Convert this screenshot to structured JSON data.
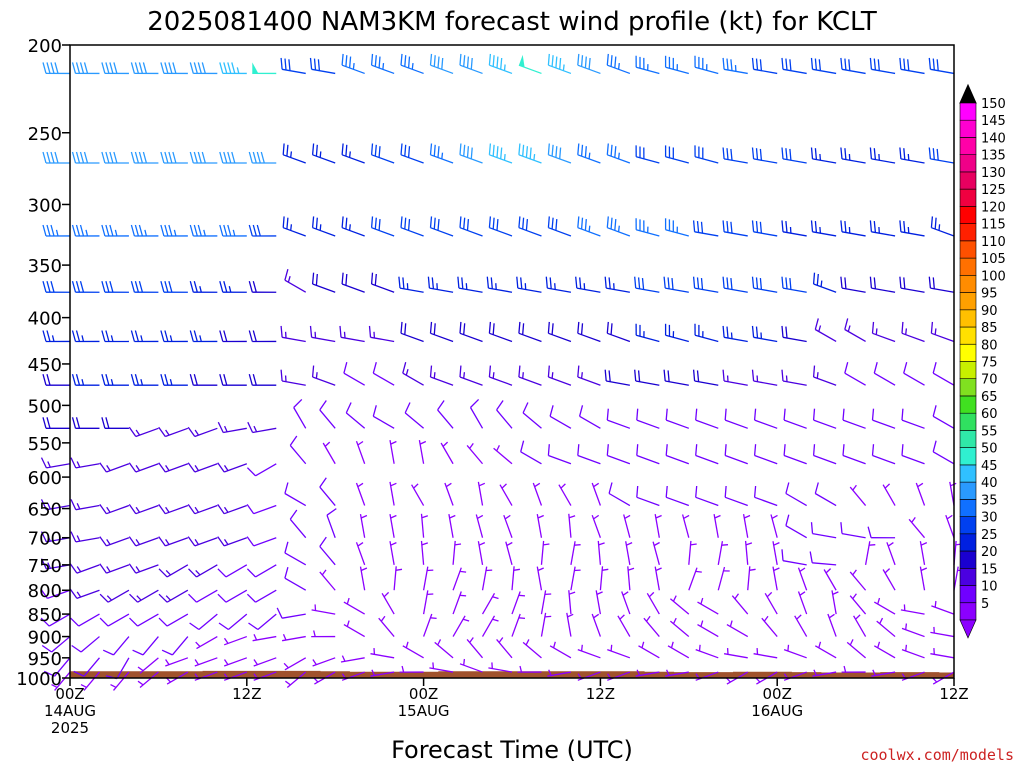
{
  "title": "2025081400 NAM3KM forecast wind profile (kt) for KCLT",
  "xlabel": "Forecast Time (UTC)",
  "credit": "coolwx.com/models",
  "credit_color": "#cc2222",
  "ground_color": "#a0522d",
  "chart_data": {
    "type": "wind-barb-profile",
    "title": "2025081400 NAM3KM forecast wind profile (kt) for KCLT",
    "xlabel": "Forecast Time (UTC)",
    "ylabel": "",
    "y_scale": "log",
    "y_inverted": true,
    "ylim": [
      1000,
      200
    ],
    "y_ticks": [
      200,
      250,
      300,
      350,
      400,
      450,
      500,
      550,
      600,
      650,
      700,
      750,
      800,
      850,
      900,
      950,
      1000
    ],
    "xlim_hours": [
      0,
      60
    ],
    "x_ticks": [
      {
        "hour": 0,
        "lines": [
          "00Z",
          "14AUG",
          "2025"
        ]
      },
      {
        "hour": 12,
        "lines": [
          "12Z"
        ]
      },
      {
        "hour": 24,
        "lines": [
          "00Z",
          "15AUG"
        ]
      },
      {
        "hour": 36,
        "lines": [
          "12Z"
        ]
      },
      {
        "hour": 48,
        "lines": [
          "00Z",
          "16AUG"
        ]
      },
      {
        "hour": 60,
        "lines": [
          "12Z"
        ]
      }
    ],
    "colorbar": {
      "values": [
        5,
        10,
        15,
        20,
        25,
        30,
        35,
        40,
        45,
        50,
        55,
        60,
        65,
        70,
        75,
        80,
        85,
        90,
        95,
        100,
        105,
        110,
        115,
        120,
        125,
        130,
        135,
        140,
        145,
        150
      ],
      "colors": [
        "#8b00ff",
        "#7000ff",
        "#4b00e0",
        "#1a00d0",
        "#0020e0",
        "#0040f0",
        "#1070ff",
        "#2a9aff",
        "#30c0ff",
        "#30f0d0",
        "#30e8a8",
        "#30e060",
        "#40e020",
        "#80e020",
        "#c8f000",
        "#ffff00",
        "#ffe000",
        "#ffc000",
        "#ffa000",
        "#ff8c00",
        "#ff7000",
        "#ff5000",
        "#ff2000",
        "#ff0000",
        "#f00040",
        "#e80060",
        "#f00088",
        "#ff00a8",
        "#ff00d0",
        "#ff00ff"
      ]
    },
    "levels": [
      {
        "p": 215,
        "speed": [
          40,
          40,
          40,
          40,
          40,
          40,
          45,
          50,
          30,
          30,
          35,
          35,
          35,
          40,
          40,
          45,
          50,
          45,
          40,
          35,
          35,
          35,
          35,
          35,
          30,
          30,
          30,
          30,
          30,
          30,
          30
        ],
        "dir": [
          270,
          270,
          270,
          270,
          270,
          270,
          270,
          270,
          280,
          280,
          290,
          290,
          290,
          290,
          290,
          290,
          290,
          290,
          290,
          290,
          285,
          285,
          285,
          280,
          280,
          280,
          280,
          280,
          280,
          280,
          280
        ]
      },
      {
        "p": 270,
        "speed": [
          40,
          40,
          40,
          40,
          40,
          40,
          40,
          40,
          25,
          25,
          25,
          30,
          30,
          35,
          40,
          45,
          45,
          40,
          35,
          35,
          30,
          30,
          30,
          30,
          30,
          30,
          25,
          25,
          25,
          25,
          30
        ],
        "dir": [
          270,
          270,
          270,
          270,
          270,
          270,
          270,
          270,
          290,
          290,
          290,
          290,
          290,
          290,
          290,
          290,
          290,
          290,
          290,
          290,
          285,
          285,
          285,
          280,
          280,
          280,
          280,
          280,
          280,
          280,
          280
        ]
      },
      {
        "p": 325,
        "speed": [
          35,
          35,
          35,
          35,
          35,
          35,
          35,
          30,
          25,
          25,
          25,
          30,
          30,
          30,
          30,
          30,
          30,
          30,
          35,
          35,
          35,
          35,
          30,
          30,
          30,
          25,
          25,
          25,
          25,
          25,
          25
        ],
        "dir": [
          270,
          270,
          270,
          270,
          270,
          270,
          270,
          270,
          290,
          290,
          290,
          290,
          290,
          290,
          290,
          290,
          290,
          290,
          290,
          290,
          285,
          285,
          280,
          280,
          280,
          280,
          280,
          280,
          280,
          280,
          290
        ]
      },
      {
        "p": 375,
        "speed": [
          30,
          30,
          30,
          30,
          30,
          25,
          25,
          20,
          15,
          20,
          20,
          20,
          25,
          25,
          25,
          25,
          25,
          25,
          25,
          25,
          30,
          30,
          30,
          30,
          30,
          30,
          25,
          20,
          20,
          20,
          20
        ],
        "dir": [
          270,
          270,
          270,
          270,
          270,
          270,
          270,
          270,
          300,
          290,
          290,
          290,
          280,
          280,
          280,
          280,
          280,
          280,
          280,
          280,
          280,
          280,
          280,
          280,
          280,
          280,
          290,
          280,
          280,
          280,
          280
        ]
      },
      {
        "p": 425,
        "speed": [
          25,
          25,
          25,
          25,
          25,
          25,
          20,
          20,
          15,
          15,
          15,
          15,
          20,
          20,
          20,
          20,
          20,
          20,
          20,
          20,
          25,
          25,
          25,
          25,
          25,
          20,
          15,
          15,
          15,
          15,
          15
        ],
        "dir": [
          270,
          270,
          270,
          270,
          270,
          270,
          270,
          270,
          280,
          280,
          280,
          280,
          290,
          290,
          290,
          290,
          290,
          290,
          290,
          290,
          285,
          285,
          285,
          280,
          280,
          280,
          300,
          300,
          290,
          290,
          290
        ]
      },
      {
        "p": 475,
        "speed": [
          20,
          25,
          25,
          25,
          25,
          20,
          20,
          20,
          15,
          15,
          10,
          10,
          15,
          15,
          15,
          15,
          15,
          15,
          15,
          20,
          20,
          20,
          20,
          15,
          15,
          15,
          15,
          10,
          10,
          10,
          10
        ],
        "dir": [
          270,
          270,
          270,
          270,
          270,
          270,
          270,
          270,
          280,
          290,
          300,
          300,
          300,
          290,
          290,
          290,
          290,
          290,
          290,
          280,
          280,
          280,
          280,
          280,
          280,
          280,
          290,
          300,
          300,
          300,
          300
        ]
      },
      {
        "p": 530,
        "speed": [
          20,
          20,
          20,
          15,
          15,
          15,
          15,
          15,
          10,
          10,
          10,
          10,
          10,
          10,
          10,
          10,
          10,
          10,
          10,
          10,
          10,
          10,
          10,
          10,
          10,
          10,
          10,
          10,
          10,
          10,
          10
        ],
        "dir": [
          270,
          270,
          270,
          250,
          250,
          250,
          260,
          260,
          330,
          320,
          310,
          300,
          310,
          320,
          330,
          320,
          310,
          300,
          300,
          290,
          290,
          290,
          290,
          290,
          290,
          290,
          290,
          290,
          290,
          290,
          300
        ]
      },
      {
        "p": 580,
        "speed": [
          15,
          15,
          15,
          15,
          15,
          15,
          15,
          10,
          10,
          5,
          5,
          5,
          5,
          5,
          5,
          5,
          10,
          10,
          10,
          10,
          10,
          10,
          10,
          10,
          10,
          10,
          10,
          10,
          10,
          10,
          10
        ],
        "dir": [
          260,
          260,
          250,
          250,
          250,
          250,
          250,
          240,
          320,
          330,
          340,
          350,
          350,
          330,
          320,
          310,
          300,
          290,
          290,
          290,
          290,
          290,
          290,
          290,
          290,
          290,
          290,
          290,
          290,
          290,
          300
        ]
      },
      {
        "p": 645,
        "speed": [
          15,
          15,
          15,
          15,
          15,
          15,
          15,
          10,
          10,
          10,
          5,
          5,
          5,
          5,
          5,
          5,
          5,
          5,
          5,
          10,
          10,
          10,
          10,
          10,
          10,
          10,
          10,
          5,
          5,
          5,
          5
        ],
        "dir": [
          260,
          260,
          250,
          250,
          250,
          250,
          250,
          250,
          300,
          320,
          340,
          350,
          330,
          340,
          350,
          330,
          340,
          330,
          340,
          300,
          290,
          290,
          290,
          290,
          290,
          300,
          300,
          320,
          330,
          340,
          350
        ]
      },
      {
        "p": 700,
        "speed": [
          15,
          15,
          15,
          15,
          15,
          15,
          15,
          10,
          10,
          10,
          5,
          5,
          5,
          5,
          5,
          5,
          5,
          5,
          5,
          5,
          5,
          5,
          5,
          5,
          5,
          10,
          10,
          10,
          10,
          5,
          5
        ],
        "dir": [
          260,
          260,
          250,
          250,
          250,
          250,
          250,
          250,
          320,
          340,
          350,
          350,
          355,
          350,
          345,
          340,
          350,
          355,
          340,
          345,
          350,
          345,
          350,
          350,
          345,
          300,
          280,
          280,
          270,
          320,
          340
        ]
      },
      {
        "p": 750,
        "speed": [
          15,
          15,
          15,
          15,
          15,
          15,
          10,
          10,
          10,
          10,
          5,
          5,
          5,
          5,
          5,
          5,
          5,
          5,
          5,
          5,
          5,
          5,
          5,
          5,
          5,
          10,
          10,
          5,
          5,
          5,
          5
        ],
        "dir": [
          260,
          250,
          250,
          250,
          240,
          240,
          240,
          240,
          300,
          320,
          340,
          350,
          355,
          5,
          350,
          345,
          5,
          10,
          355,
          350,
          345,
          5,
          10,
          355,
          350,
          280,
          275,
          10,
          340,
          350,
          5
        ]
      },
      {
        "p": 800,
        "speed": [
          10,
          15,
          15,
          15,
          15,
          10,
          10,
          10,
          10,
          5,
          5,
          5,
          5,
          5,
          5,
          5,
          5,
          5,
          5,
          5,
          5,
          5,
          5,
          5,
          5,
          5,
          5,
          5,
          5,
          5,
          5
        ],
        "dir": [
          250,
          250,
          240,
          240,
          240,
          240,
          240,
          240,
          300,
          320,
          350,
          5,
          10,
          20,
          10,
          5,
          350,
          10,
          5,
          355,
          350,
          20,
          15,
          5,
          350,
          340,
          330,
          320,
          330,
          350,
          10
        ]
      },
      {
        "p": 850,
        "speed": [
          10,
          10,
          10,
          10,
          10,
          10,
          10,
          10,
          10,
          5,
          5,
          5,
          5,
          5,
          5,
          5,
          5,
          5,
          5,
          5,
          5,
          5,
          5,
          5,
          5,
          5,
          5,
          5,
          5,
          5,
          5
        ],
        "dir": [
          240,
          240,
          240,
          240,
          240,
          230,
          230,
          230,
          260,
          280,
          300,
          330,
          10,
          20,
          30,
          20,
          10,
          355,
          350,
          340,
          330,
          310,
          300,
          320,
          330,
          340,
          350,
          320,
          300,
          280,
          290
        ]
      },
      {
        "p": 900,
        "speed": [
          10,
          10,
          10,
          10,
          10,
          5,
          5,
          5,
          5,
          5,
          5,
          5,
          5,
          5,
          5,
          5,
          5,
          5,
          5,
          5,
          5,
          5,
          5,
          5,
          5,
          5,
          5,
          5,
          5,
          5,
          5
        ],
        "dir": [
          230,
          230,
          220,
          220,
          220,
          240,
          250,
          260,
          260,
          270,
          300,
          320,
          20,
          30,
          30,
          20,
          10,
          350,
          340,
          330,
          320,
          310,
          300,
          300,
          320,
          330,
          340,
          330,
          310,
          290,
          280
        ]
      },
      {
        "p": 950,
        "speed": [
          10,
          10,
          10,
          5,
          5,
          5,
          5,
          5,
          5,
          5,
          5,
          5,
          5,
          5,
          5,
          5,
          5,
          5,
          5,
          5,
          5,
          5,
          5,
          5,
          5,
          5,
          5,
          5,
          5,
          5,
          5
        ],
        "dir": [
          220,
          220,
          210,
          230,
          250,
          250,
          250,
          250,
          240,
          250,
          260,
          280,
          300,
          310,
          320,
          320,
          310,
          300,
          290,
          290,
          300,
          300,
          290,
          280,
          280,
          290,
          300,
          310,
          300,
          290,
          280
        ]
      },
      {
        "p": 985,
        "speed": [
          5,
          5,
          5,
          5,
          5,
          5,
          5,
          5,
          5,
          5,
          5,
          5,
          5,
          5,
          5,
          5,
          5,
          5,
          5,
          5,
          5,
          5,
          5,
          5,
          5,
          5,
          5,
          5,
          5,
          5,
          5
        ],
        "dir": [
          220,
          220,
          220,
          230,
          240,
          250,
          250,
          250,
          230,
          240,
          250,
          260,
          270,
          280,
          290,
          280,
          270,
          260,
          250,
          250,
          260,
          260,
          250,
          240,
          240,
          250,
          260,
          270,
          260,
          250,
          240
        ]
      }
    ],
    "ground_pressure": [
      983,
      983,
      983,
      983,
      983,
      982,
      982,
      982,
      982,
      983,
      984,
      984,
      984,
      983,
      983,
      983,
      983,
      983,
      983,
      983,
      984,
      985,
      985,
      984,
      984,
      985,
      986,
      986,
      985,
      985,
      986
    ]
  }
}
